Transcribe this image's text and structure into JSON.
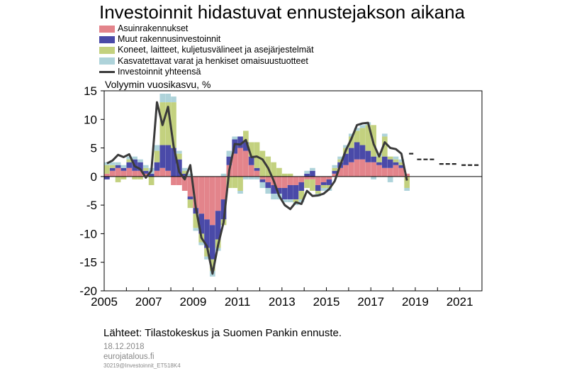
{
  "chart_data": {
    "type": "bar",
    "title": "Investoinnit hidastuvat ennustejakson aikana",
    "ylabel": "Volyymin vuosikasvu, %",
    "ylim": [
      -20,
      15
    ],
    "yticks": [
      15,
      10,
      5,
      0,
      -5,
      -10,
      -15,
      -20
    ],
    "xlim": [
      2005,
      2022
    ],
    "xticks": [
      2005,
      2007,
      2009,
      2011,
      2013,
      2015,
      2017,
      2019,
      2021
    ],
    "stacked": true,
    "quarters": [
      "2005Q1",
      "2005Q2",
      "2005Q3",
      "2005Q4",
      "2006Q1",
      "2006Q2",
      "2006Q3",
      "2006Q4",
      "2007Q1",
      "2007Q2",
      "2007Q3",
      "2007Q4",
      "2008Q1",
      "2008Q2",
      "2008Q3",
      "2008Q4",
      "2009Q1",
      "2009Q2",
      "2009Q3",
      "2009Q4",
      "2010Q1",
      "2010Q2",
      "2010Q3",
      "2010Q4",
      "2011Q1",
      "2011Q2",
      "2011Q3",
      "2011Q4",
      "2012Q1",
      "2012Q2",
      "2012Q3",
      "2012Q4",
      "2013Q1",
      "2013Q2",
      "2013Q3",
      "2013Q4",
      "2014Q1",
      "2014Q2",
      "2014Q3",
      "2014Q4",
      "2015Q1",
      "2015Q2",
      "2015Q3",
      "2015Q4",
      "2016Q1",
      "2016Q2",
      "2016Q3",
      "2016Q4",
      "2017Q1",
      "2017Q2",
      "2017Q3",
      "2017Q4",
      "2018Q1",
      "2018Q2",
      "2018Q3"
    ],
    "series": [
      {
        "name": "Asuinrakennukset",
        "color": "#e3848b",
        "values": [
          0.5,
          1.0,
          1.5,
          1.0,
          1.5,
          1.0,
          1.0,
          0.5,
          0,
          1.0,
          1.5,
          1.0,
          -1.5,
          -1.5,
          -2.5,
          -3.5,
          -5.5,
          -6.5,
          -7.5,
          -8.5,
          -6.0,
          -4.0,
          2.0,
          4.0,
          5.0,
          4.5,
          2.0,
          1.0,
          -0.5,
          -1.0,
          -1.5,
          -2.0,
          -2.0,
          -1.5,
          -1.5,
          -1.0,
          -0.5,
          -0.5,
          -1.5,
          -1.0,
          -0.5,
          0.5,
          1.5,
          2.0,
          2.5,
          3.0,
          3.0,
          2.5,
          2.5,
          2.0,
          1.5,
          1.5,
          2.0,
          1.5,
          0.5
        ]
      },
      {
        "name": "Muut rakennusinvestoinnit",
        "color": "#4a4aa8",
        "values": [
          -0.5,
          0.5,
          0.5,
          0.5,
          1.0,
          2.0,
          1.5,
          0.5,
          0.5,
          1.5,
          4.0,
          4.5,
          5.0,
          3.0,
          0.5,
          -0.5,
          -1.0,
          -3.5,
          -5.0,
          -6.0,
          -5.0,
          -3.5,
          1.5,
          2.5,
          2.0,
          1.5,
          1.5,
          0.5,
          -0.5,
          -1.0,
          -1.5,
          -1.0,
          -2.0,
          -2.5,
          -2.5,
          -1.5,
          0.5,
          1.0,
          -1.0,
          -0.5,
          -1.0,
          0.5,
          1.0,
          2.0,
          2.5,
          3.0,
          2.5,
          2.0,
          1.0,
          0.5,
          2.0,
          1.5,
          0.5,
          0.5,
          0.0
        ]
      },
      {
        "name": "Koneet, laitteet, kuljetusvälineet ja asejärjestelmät",
        "color": "#c3d17f",
        "values": [
          1.5,
          0.5,
          -1.0,
          -0.5,
          0.5,
          -0.5,
          -0.5,
          0.5,
          -1.5,
          2.0,
          7.5,
          7.5,
          8.0,
          1.0,
          0.5,
          -1.5,
          -2.5,
          -1.5,
          -1.5,
          -2.0,
          -1.5,
          -1.0,
          -2.0,
          -2.0,
          -2.5,
          2.0,
          2.5,
          4.5,
          4.5,
          3.5,
          2.5,
          1.5,
          0.5,
          0.5,
          -0.5,
          -1.5,
          -1.5,
          -2.0,
          -0.5,
          -0.5,
          -0.5,
          0.5,
          0.5,
          1.0,
          2.0,
          2.0,
          3.0,
          4.5,
          5.5,
          1.0,
          3.5,
          0.5,
          0.5,
          0.5,
          -2.0
        ]
      },
      {
        "name": "Kasvatettavat varat ja henkiset omaisuustuotteet",
        "color": "#aed3da",
        "values": [
          0.5,
          0.5,
          0.5,
          0.5,
          0.5,
          0.5,
          0.5,
          0.5,
          1.0,
          1.0,
          1.5,
          1.5,
          1.0,
          0.5,
          0.5,
          0.5,
          -0.5,
          -0.5,
          -0.5,
          -1.0,
          -0.5,
          0.5,
          1.0,
          0.5,
          -0.5,
          -0.5,
          -0.5,
          -0.5,
          -1.0,
          -1.0,
          -1.0,
          -1.0,
          -0.5,
          -0.5,
          -0.5,
          -0.5,
          0.5,
          0.5,
          -0.5,
          -0.5,
          -0.5,
          0.5,
          0.5,
          0.5,
          0.5,
          0.5,
          0.5,
          0.5,
          -0.5,
          0.5,
          0.5,
          -1.0,
          0.5,
          0.5,
          -0.5
        ]
      },
      {
        "name": "Investoinnit yhteensä",
        "type": "line",
        "color": "#3a3a3a",
        "values": [
          2.3,
          2.8,
          3.8,
          3.4,
          3.9,
          1.8,
          1.3,
          -0.2,
          1.0,
          13.0,
          9.0,
          12.2,
          5.3,
          0.8,
          -0.5,
          2.0,
          -5.5,
          -10.7,
          -12.2,
          -17.0,
          -12.0,
          -8.0,
          1.0,
          5.7,
          5.6,
          6.4,
          3.4,
          3.5,
          3.0,
          1.5,
          -0.7,
          -3.4,
          -5.0,
          -5.7,
          -4.5,
          -4.8,
          -2.5,
          -3.4,
          -3.3,
          -3.0,
          -2.2,
          -0.8,
          2.0,
          4.6,
          6.6,
          9.0,
          9.3,
          9.4,
          5.7,
          3.5,
          6.0,
          5.0,
          4.8,
          4.0,
          -0.7
        ]
      }
    ],
    "forecast": {
      "years": [
        2018,
        2019,
        2020,
        2021
      ],
      "values": [
        4.0,
        3.0,
        2.2,
        2.0
      ]
    }
  },
  "source": "Lähteet: Tilastokeskus ja Suomen Pankin ennuste.",
  "date": "18.12.2018",
  "site": "eurojatalous.fi",
  "code": "30219@Investoinnit_ET518K4"
}
